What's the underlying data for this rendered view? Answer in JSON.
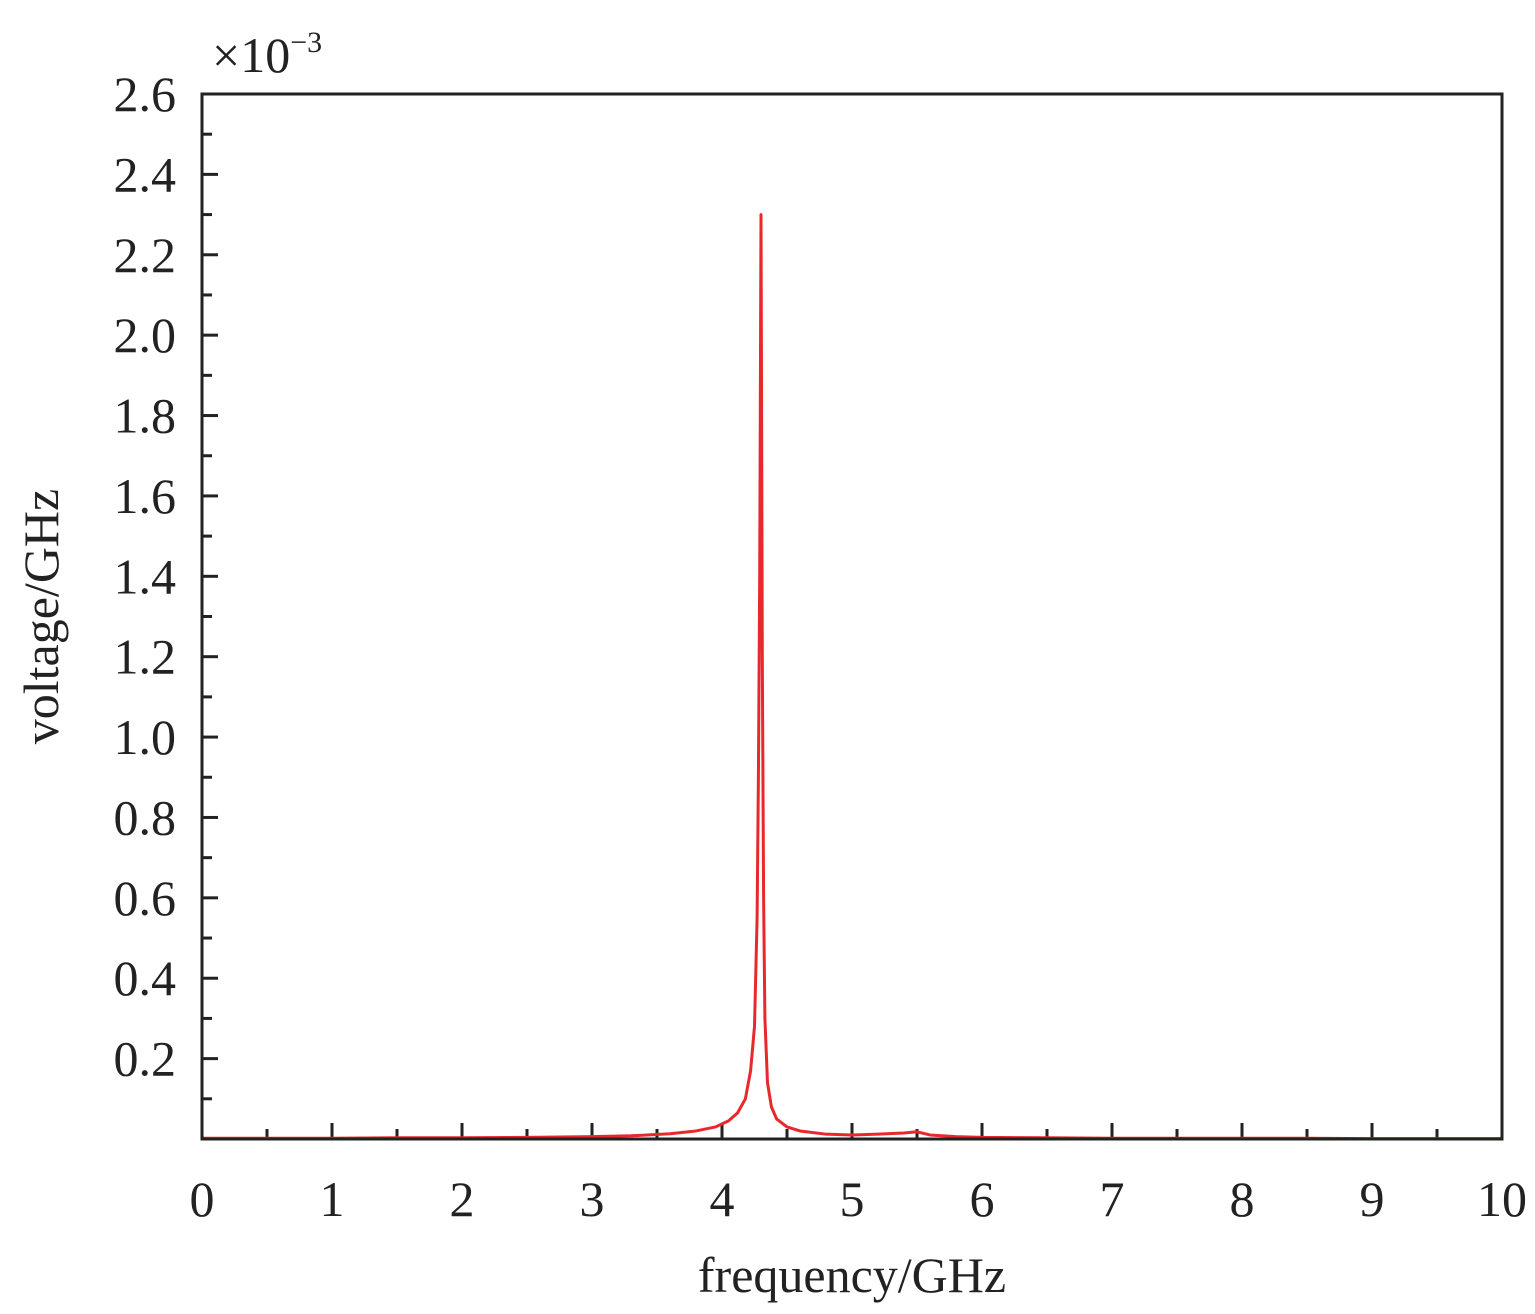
{
  "chart_data": {
    "type": "line",
    "title": "",
    "xlabel": "frequency/GHz",
    "ylabel": "voltage/GHz",
    "y_multiplier": {
      "base": "×10",
      "exponent": "−3"
    },
    "xlim": [
      0,
      10
    ],
    "ylim": [
      0,
      2.6
    ],
    "x_ticks": [
      0,
      1,
      2,
      3,
      4,
      5,
      6,
      7,
      8,
      9,
      10
    ],
    "x_tick_labels": [
      "0",
      "1",
      "2",
      "3",
      "4",
      "5",
      "6",
      "7",
      "8",
      "9",
      "10"
    ],
    "y_ticks": [
      0.2,
      0.4,
      0.6,
      0.8,
      1.0,
      1.2,
      1.4,
      1.6,
      1.8,
      2.0,
      2.2,
      2.4,
      2.6
    ],
    "y_tick_labels": [
      "0.2",
      "0.4",
      "0.6",
      "0.8",
      "1.0",
      "1.2",
      "1.4",
      "1.6",
      "1.8",
      "2.0",
      "2.2",
      "2.4",
      "2.6"
    ],
    "grid": false,
    "line_color": "#e8282b",
    "series": [
      {
        "x": [
          0,
          0.5,
          1,
          1.5,
          2,
          2.5,
          3,
          3.3,
          3.6,
          3.8,
          3.95,
          4.05,
          4.12,
          4.18,
          4.22,
          4.25,
          4.27,
          4.28,
          4.29,
          4.3,
          4.31,
          4.32,
          4.33,
          4.35,
          4.38,
          4.42,
          4.5,
          4.6,
          4.8,
          5,
          5.2,
          5.4,
          5.5,
          5.6,
          5.8,
          6,
          6.5,
          7,
          7.5,
          8,
          8.5,
          9,
          9.5,
          10
        ],
        "values": [
          0.002,
          0.002,
          0.002,
          0.003,
          0.003,
          0.004,
          0.006,
          0.008,
          0.013,
          0.02,
          0.03,
          0.045,
          0.065,
          0.1,
          0.17,
          0.28,
          0.55,
          0.9,
          1.4,
          2.3,
          1.2,
          0.6,
          0.3,
          0.14,
          0.08,
          0.05,
          0.03,
          0.02,
          0.012,
          0.01,
          0.012,
          0.015,
          0.018,
          0.01,
          0.006,
          0.004,
          0.003,
          0.002,
          0.002,
          0.002,
          0.002,
          0.001,
          0.001,
          0.001
        ]
      }
    ]
  }
}
